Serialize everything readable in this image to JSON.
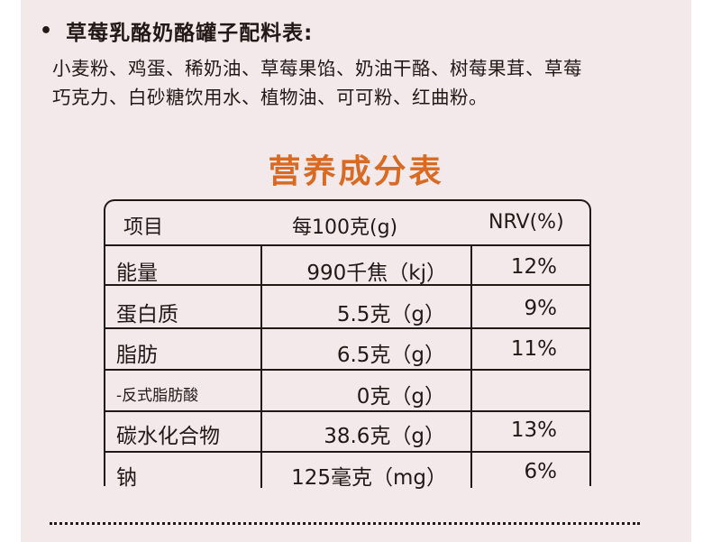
{
  "ingredients": {
    "title": "草莓乳酪奶酪罐子配料表:",
    "line1": "小麦粉、鸡蛋、稀奶油、草莓果馅、奶油干酪、树莓果茸、草莓",
    "line2": "巧克力、白砂糖饮用水、植物油、可可粉、红曲粉。"
  },
  "nutrition": {
    "title": "营养成分表",
    "headers": {
      "item": "项目",
      "per100": "每100克(g)",
      "nrv": "NRV(%)"
    },
    "rows": [
      {
        "item": "能量",
        "value": "990千焦（kj）",
        "nrv": "12%"
      },
      {
        "item": "蛋白质",
        "value": "5.5克（g）",
        "nrv": "9%"
      },
      {
        "item": "脂肪",
        "value": "6.5克（g）",
        "nrv": "11%"
      },
      {
        "item": "-反式脂肪酸",
        "value": "0克（g）",
        "nrv": ""
      },
      {
        "item": "碳水化合物",
        "value": "38.6克（g）",
        "nrv": "13%"
      },
      {
        "item": "钠",
        "value": "125毫克（mg）",
        "nrv": "6%"
      }
    ]
  }
}
